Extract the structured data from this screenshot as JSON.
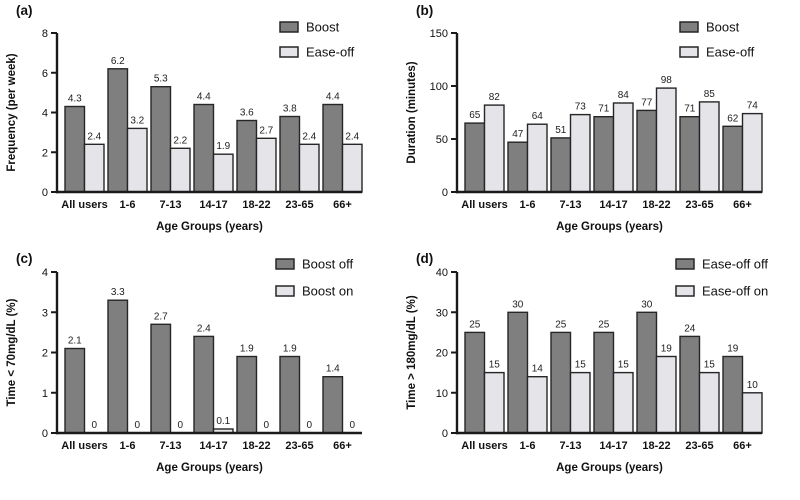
{
  "figure_colors": {
    "series_dark": "#7f7f7f",
    "series_light": "#e4e4e9",
    "bar_border": "#262626",
    "axis": "#1a1a1a",
    "text": "#111111",
    "value_label": "#222222",
    "background": "#ffffff"
  },
  "chart_data": [
    {
      "type": "bar",
      "panel_label": "(a)",
      "xlabel": "Age Groups (years)",
      "ylabel": "Frequency (per week)",
      "ylim": [
        0,
        8
      ],
      "yticks": [
        0,
        2,
        4,
        6,
        8
      ],
      "grid": false,
      "legend_position": "top-right",
      "categories": [
        "All users",
        "1-6",
        "7-13",
        "14-17",
        "18-22",
        "23-65",
        "66+"
      ],
      "series": [
        {
          "name": "Boost",
          "color_key": "series_dark",
          "values": [
            4.3,
            6.2,
            5.3,
            4.4,
            3.6,
            3.8,
            4.4
          ]
        },
        {
          "name": "Ease-off",
          "color_key": "series_light",
          "values": [
            2.4,
            3.2,
            2.2,
            1.9,
            2.7,
            2.4,
            2.4
          ]
        }
      ]
    },
    {
      "type": "bar",
      "panel_label": "(b)",
      "xlabel": "Age Groups (years)",
      "ylabel": "Duration (minutes)",
      "ylim": [
        0,
        150
      ],
      "yticks": [
        0,
        50,
        100,
        150
      ],
      "grid": false,
      "legend_position": "top-right",
      "categories": [
        "All users",
        "1-6",
        "7-13",
        "14-17",
        "18-22",
        "23-65",
        "66+"
      ],
      "series": [
        {
          "name": "Boost",
          "color_key": "series_dark",
          "values": [
            65,
            47,
            51,
            71,
            77,
            71,
            62
          ]
        },
        {
          "name": "Ease-off",
          "color_key": "series_light",
          "values": [
            82,
            64,
            73,
            84,
            98,
            85,
            74
          ]
        }
      ]
    },
    {
      "type": "bar",
      "panel_label": "(c)",
      "xlabel": "Age Groups (years)",
      "ylabel": "Time < 70mg/dL (%)",
      "ylim": [
        0,
        4
      ],
      "yticks": [
        0,
        1,
        2,
        3,
        4
      ],
      "grid": false,
      "legend_position": "top-right",
      "categories": [
        "All users",
        "1-6",
        "7-13",
        "14-17",
        "18-22",
        "23-65",
        "66+"
      ],
      "series": [
        {
          "name": "Boost off",
          "color_key": "series_dark",
          "values": [
            2.1,
            3.3,
            2.7,
            2.4,
            1.9,
            1.9,
            1.4
          ]
        },
        {
          "name": "Boost on",
          "color_key": "series_light",
          "values": [
            0,
            0,
            0,
            0.1,
            0,
            0,
            0
          ]
        }
      ]
    },
    {
      "type": "bar",
      "panel_label": "(d)",
      "xlabel": "Age Groups (years)",
      "ylabel": "Time > 180mg/dL (%)",
      "ylim": [
        0,
        40
      ],
      "yticks": [
        0,
        10,
        20,
        30,
        40
      ],
      "grid": false,
      "legend_position": "top-right",
      "categories": [
        "All users",
        "1-6",
        "7-13",
        "14-17",
        "18-22",
        "23-65",
        "66+"
      ],
      "series": [
        {
          "name": "Ease-off off",
          "color_key": "series_dark",
          "values": [
            25,
            30,
            25,
            25,
            30,
            24,
            19
          ]
        },
        {
          "name": "Ease-off on",
          "color_key": "series_light",
          "values": [
            15,
            14,
            15,
            15,
            19,
            15,
            10
          ]
        }
      ]
    }
  ]
}
